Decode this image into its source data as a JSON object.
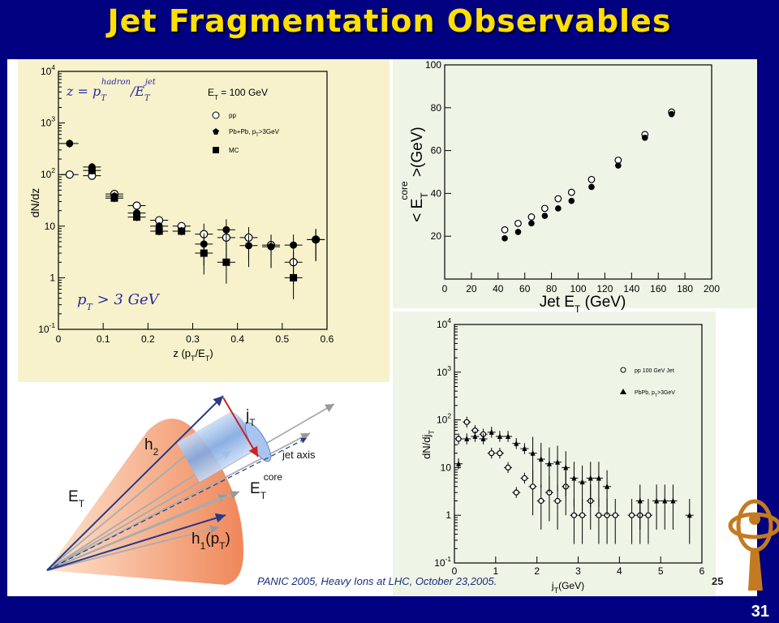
{
  "slide": {
    "title": "Jet Fragmentation Observables",
    "page_number": "31",
    "caption": "PANIC 2005, Heavy Ions at LHC, October 23,2005.",
    "source_slide_number": "25"
  },
  "colors": {
    "slide_bg": "#000080",
    "title": "#ffe000",
    "panel_left_bg": "#f7f2cc",
    "panel_right_bg": "#eef5e6",
    "cone": "#f08a5a",
    "core": "#8fb3e8",
    "arrow_blue": "#243a8a",
    "arrow_red": "#cc2222"
  },
  "chart_data": [
    {
      "type": "scatter",
      "title": "",
      "xlabel": "z (p_T/E_T)",
      "ylabel": "dN/dz",
      "xlim": [
        0,
        0.6
      ],
      "ylim": [
        0.1,
        10000
      ],
      "yscale": "log",
      "x_ticks": [
        "0",
        "0.1",
        "0.2",
        "0.3",
        "0.4",
        "0.5",
        "0.6"
      ],
      "y_ticks": [
        "10^-1",
        "1",
        "10",
        "10^2",
        "10^3",
        "10^4"
      ],
      "legend_placement": "top-right",
      "annotations": [
        "z = p_T^hadron / E_T^jet",
        "E_T = 100 GeV",
        "p_T > 3 GeV"
      ],
      "series": [
        {
          "name": "pp",
          "marker": "open-circle",
          "x": [
            0.025,
            0.075,
            0.125,
            0.175,
            0.225,
            0.275,
            0.325,
            0.375,
            0.425,
            0.475,
            0.525,
            0.575
          ],
          "y": [
            100,
            95,
            42,
            25,
            13,
            10,
            7,
            6,
            6,
            4.3,
            2,
            5.5
          ]
        },
        {
          "name": "Pb+Pb, p_T>3GeV",
          "marker": "filled-circle",
          "x": [
            0.025,
            0.075,
            0.125,
            0.175,
            0.225,
            0.275,
            0.325,
            0.375,
            0.425,
            0.475,
            0.525,
            0.575
          ],
          "y": [
            400,
            140,
            38,
            18,
            10,
            8,
            4.5,
            8.5,
            4.2,
            4.0,
            4.3,
            5.5
          ]
        },
        {
          "name": "MC",
          "marker": "filled-square",
          "x": [
            0.075,
            0.125,
            0.175,
            0.225,
            0.275,
            0.325,
            0.375,
            0.525
          ],
          "y": [
            120,
            35,
            15,
            8,
            8,
            3,
            2,
            1
          ]
        }
      ]
    },
    {
      "type": "scatter",
      "title": "",
      "xlabel": "Jet E_T (GeV)",
      "ylabel": "< E_T^core >(GeV)",
      "xlim": [
        0,
        200
      ],
      "ylim": [
        0,
        100
      ],
      "x_ticks": [
        "0",
        "20",
        "40",
        "60",
        "80",
        "100",
        "120",
        "140",
        "160",
        "180",
        "200"
      ],
      "y_ticks": [
        "20",
        "40",
        "60",
        "80",
        "100"
      ],
      "series": [
        {
          "name": "open",
          "marker": "open-circle",
          "x": [
            45,
            55,
            65,
            75,
            85,
            95,
            110,
            130,
            150,
            170
          ],
          "y": [
            23,
            26,
            29,
            33,
            37.5,
            40.5,
            46.5,
            55.5,
            67.5,
            78
          ]
        },
        {
          "name": "filled",
          "marker": "filled-circle",
          "x": [
            45,
            55,
            65,
            75,
            85,
            95,
            110,
            130,
            150,
            170
          ],
          "y": [
            19,
            22,
            26,
            29.5,
            33,
            36.5,
            43,
            53,
            66,
            77
          ]
        }
      ]
    },
    {
      "type": "scatter",
      "title": "",
      "xlabel": "j_T(GeV)",
      "ylabel": "dN/dj_T",
      "xlim": [
        0,
        6
      ],
      "ylim": [
        0.1,
        10000
      ],
      "yscale": "log",
      "x_ticks": [
        "0",
        "1",
        "2",
        "3",
        "4",
        "5",
        "6"
      ],
      "y_ticks": [
        "10^-1",
        "1",
        "10",
        "10^2",
        "10^3",
        "10^4"
      ],
      "legend_placement": "top-right",
      "series": [
        {
          "name": "pp 100 GeV Jet",
          "marker": "open-circle",
          "x": [
            0.1,
            0.3,
            0.5,
            0.7,
            0.9,
            1.1,
            1.3,
            1.5,
            1.7,
            1.9,
            2.1,
            2.3,
            2.5,
            2.7,
            2.9,
            3.1,
            3.3,
            3.5,
            3.7,
            3.9,
            4.3,
            4.5,
            4.7
          ],
          "y": [
            40,
            90,
            60,
            50,
            20,
            20,
            10,
            3,
            6,
            4,
            2,
            3,
            2,
            4,
            1,
            1,
            2,
            1,
            1,
            1,
            1,
            1,
            1
          ]
        },
        {
          "name": "PbPb, p_T>3GeV",
          "marker": "filled-star",
          "x": [
            0.1,
            0.3,
            0.5,
            0.7,
            0.9,
            1.1,
            1.3,
            1.5,
            1.7,
            1.9,
            2.1,
            2.3,
            2.5,
            2.7,
            2.9,
            3.1,
            3.3,
            3.5,
            3.7,
            4.5,
            4.9,
            5.1,
            5.3,
            5.7
          ],
          "y": [
            12,
            40,
            45,
            40,
            55,
            45,
            45,
            32,
            25,
            20,
            15,
            12,
            13,
            10,
            6,
            5,
            6,
            6,
            4,
            2,
            2,
            2,
            2,
            1
          ]
        }
      ]
    }
  ],
  "diagram": {
    "labels": {
      "jt": "j_T",
      "h2": "h_2",
      "jet_axis": "jet axis",
      "et": "E_T",
      "et_core": "E_T^core",
      "h1": "h_1(p_T)"
    }
  }
}
